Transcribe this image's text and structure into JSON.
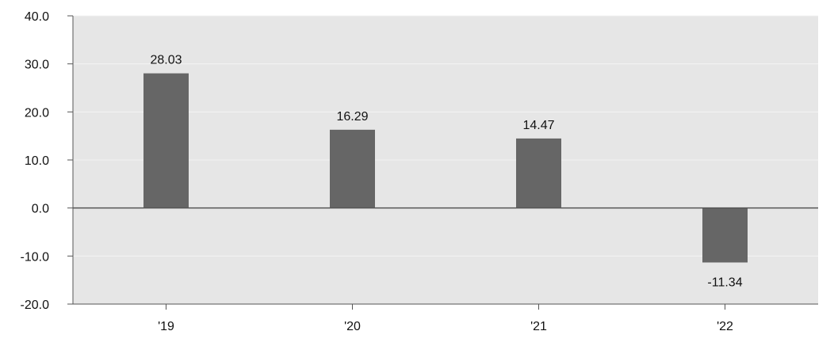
{
  "chart_data": {
    "type": "bar",
    "categories": [
      "'19",
      "'20",
      "'21",
      "'22"
    ],
    "values": [
      28.03,
      16.29,
      14.47,
      -11.34
    ],
    "data_labels": [
      "28.03",
      "16.29",
      "14.47",
      "-11.34"
    ],
    "ylim": [
      -20,
      40
    ],
    "yticks": [
      40,
      30,
      20,
      10,
      0,
      -10,
      -20
    ],
    "ytick_labels": [
      "40.0",
      "30.0",
      "20.0",
      "10.0",
      "0.0",
      "-10.0",
      "-20.0"
    ],
    "grid": true,
    "legend": "none",
    "colors": {
      "bar": "#666666",
      "plot_background": "#e6e6e6",
      "grid": "#f3f3f3",
      "axis": "#555555"
    }
  }
}
